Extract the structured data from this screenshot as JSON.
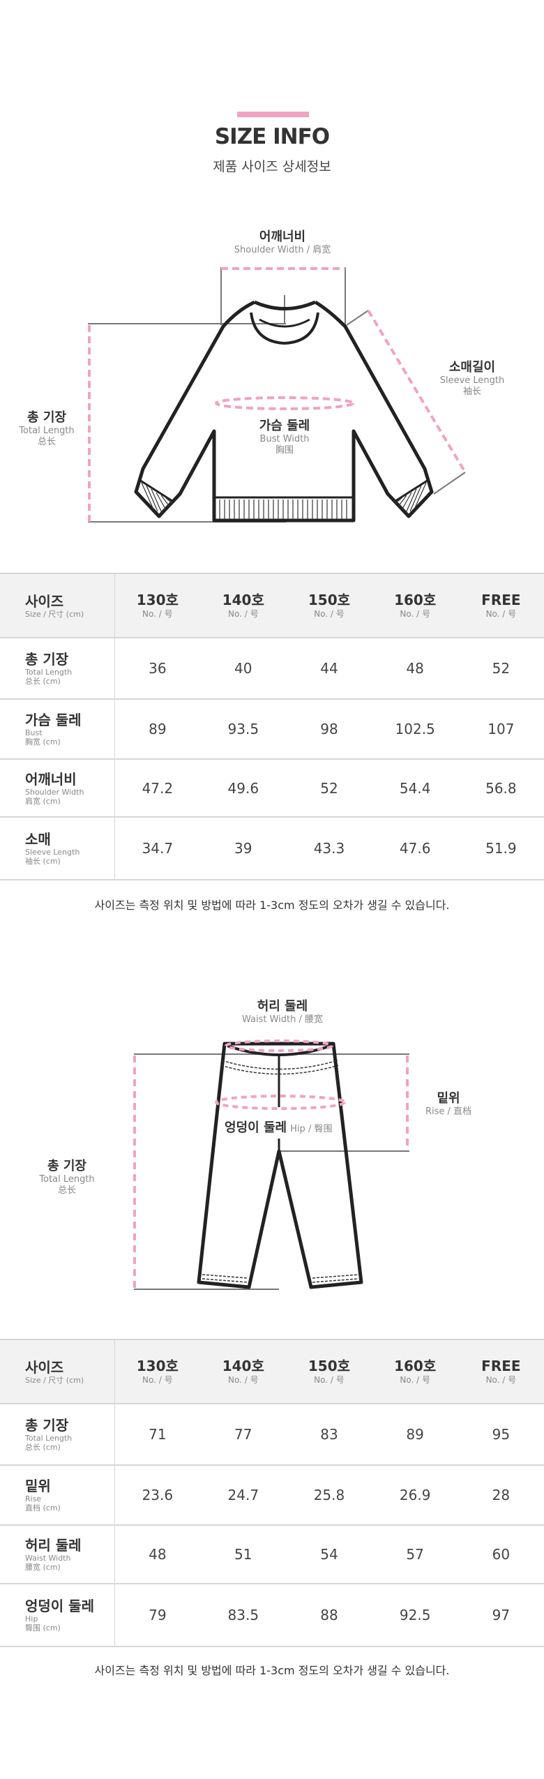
{
  "header": {
    "title": "SIZE INFO",
    "subtitle": "제품 사이즈 상세정보",
    "accent_color": "#f0a3c3"
  },
  "top_diagram": {
    "shoulder": {
      "ko": "어깨너비",
      "sub": "Shoulder Width / 肩宽"
    },
    "sleeve": {
      "ko": "소매길이",
      "en": "Sleeve Length",
      "zh": "袖长"
    },
    "total": {
      "ko": "총 기장",
      "en": "Total Length",
      "zh": "总长"
    },
    "bust": {
      "ko": "가슴 둘레",
      "en": "Bust Width",
      "zh": "胸围"
    }
  },
  "top_table": {
    "header": {
      "label": "사이즈",
      "sub": "Size / 尺寸 (cm)",
      "columns": [
        {
          "label": "130호",
          "sub": "No. / 号"
        },
        {
          "label": "140호",
          "sub": "No. / 号"
        },
        {
          "label": "150호",
          "sub": "No. / 号"
        },
        {
          "label": "160호",
          "sub": "No. / 号"
        },
        {
          "label": "FREE",
          "sub": "No. / 号"
        }
      ]
    },
    "rows": [
      {
        "ko": "총 기장",
        "en": "Total Length",
        "zh": "总长 (cm)",
        "values": [
          "36",
          "40",
          "44",
          "48",
          "52"
        ]
      },
      {
        "ko": "가슴 둘레",
        "en": "Bust",
        "zh": "胸宽 (cm)",
        "values": [
          "89",
          "93.5",
          "98",
          "102.5",
          "107"
        ]
      },
      {
        "ko": "어깨너비",
        "en": "Shoulder Width",
        "zh": "肩宽 (cm)",
        "values": [
          "47.2",
          "49.6",
          "52",
          "54.4",
          "56.8"
        ]
      },
      {
        "ko": "소매",
        "en": "Sleeve Length",
        "zh": "袖长 (cm)",
        "values": [
          "34.7",
          "39",
          "43.3",
          "47.6",
          "51.9"
        ]
      }
    ],
    "note": "사이즈는 측정 위치 및 방법에 따라 1-3cm 정도의 오차가 생길 수 있습니다."
  },
  "bottom_diagram": {
    "waist": {
      "ko": "허리 둘레",
      "sub": "Waist Width / 腰宽"
    },
    "rise": {
      "ko": "밑위",
      "sub": "Rise / 直档"
    },
    "total": {
      "ko": "총 기장",
      "en": "Total Length",
      "zh": "总长"
    },
    "hip": {
      "ko": "엉덩이 둘레",
      "sub": "Hip / 臀围"
    }
  },
  "bottom_table": {
    "header": {
      "label": "사이즈",
      "sub": "Size / 尺寸 (cm)",
      "columns": [
        {
          "label": "130호",
          "sub": "No. / 号"
        },
        {
          "label": "140호",
          "sub": "No. / 号"
        },
        {
          "label": "150호",
          "sub": "No. / 号"
        },
        {
          "label": "160호",
          "sub": "No. / 号"
        },
        {
          "label": "FREE",
          "sub": "No. / 号"
        }
      ]
    },
    "rows": [
      {
        "ko": "총 기장",
        "en": "Total Length",
        "zh": "总长 (cm)",
        "values": [
          "71",
          "77",
          "83",
          "89",
          "95"
        ]
      },
      {
        "ko": "밑위",
        "en": "Rise",
        "zh": "直档 (cm)",
        "values": [
          "23.6",
          "24.7",
          "25.8",
          "26.9",
          "28"
        ]
      },
      {
        "ko": "허리 둘레",
        "en": "Waist Width",
        "zh": "腰宽 (cm)",
        "values": [
          "48",
          "51",
          "54",
          "57",
          "60"
        ]
      },
      {
        "ko": "엉덩이 둘레",
        "en": "Hip",
        "zh": "臀围 (cm)",
        "values": [
          "79",
          "83.5",
          "88",
          "92.5",
          "97"
        ]
      }
    ],
    "note": "사이즈는 측정 위치 및 방법에 따라 1-3cm 정도의 오차가 생길 수 있습니다."
  }
}
